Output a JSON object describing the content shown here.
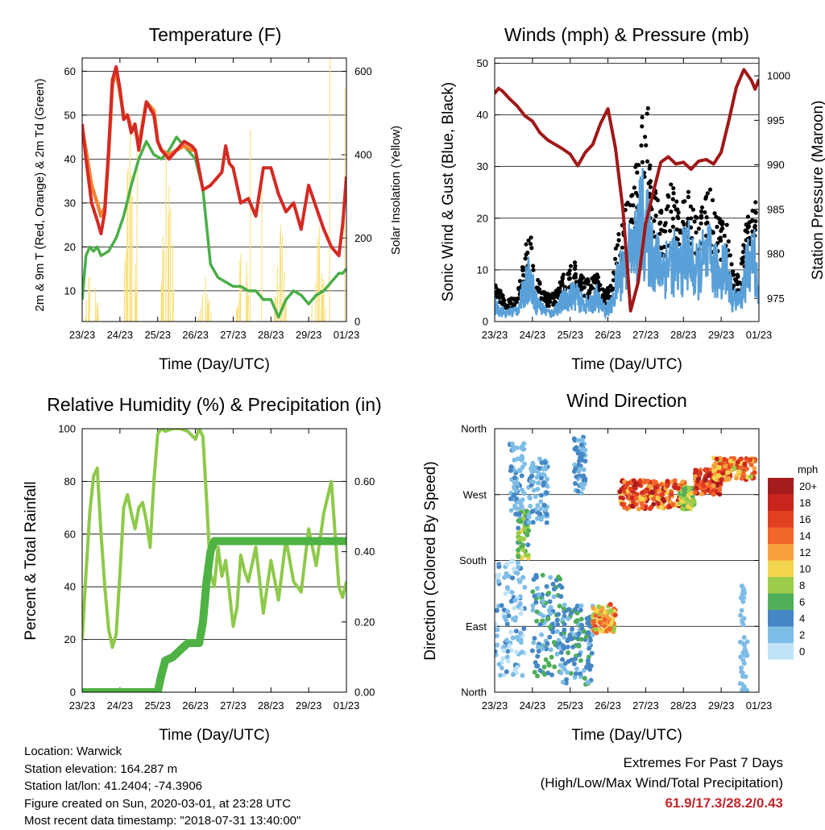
{
  "panels": {
    "temperature": {
      "title": "Temperature (F)",
      "xlabel": "Time (Day/UTC)",
      "ylabel_left": "2m & 9m T (Red, Orange) & 2m Td (Green)",
      "ylabel_right": "Solar Insolation (Yellow)"
    },
    "winds": {
      "title": "Winds (mph) & Pressure (mb)",
      "xlabel": "Time (Day/UTC)",
      "ylabel_left": "Sonic Wind & Gust (Blue, Black)",
      "ylabel_right": "Station Pressure (Maroon)"
    },
    "humidity": {
      "title": "Relative Humidity (%) & Precipitation (in)",
      "xlabel": "Time (Day/UTC)",
      "ylabel_left": "Percent & Total Rainfall"
    },
    "direction": {
      "title": "Wind Direction",
      "xlabel": "Time (Day/UTC)",
      "ylabel_left": "Direction (Colored By Speed)",
      "legend_title": "mph"
    }
  },
  "info": {
    "location": "Location: Warwick",
    "elevation": "Station elevation: 164.287 m",
    "latlon": "Station lat/lon: 41.2404; -74.3906",
    "created": "Figure created on Sun, 2020-03-01, at 23:28 UTC",
    "recent": "Most recent data timestamp: \"2018-07-31 13:40:00\""
  },
  "extremes": {
    "line1": "Extremes For Past 7 Days",
    "line2": "(High/Low/Max Wind/Total Precipitation)",
    "values": "61.9/17.3/28.2/0.43"
  },
  "colors": {
    "temp_2m": "#d42a24",
    "temp_9m": "#f58231",
    "dewpoint": "#4aae48",
    "solar": "#f8e07a",
    "wind": "#5aa0d8",
    "gust": "#000000",
    "pressure": "#a01818",
    "rh": "#8ec94a",
    "precip": "#4eb244"
  },
  "chart_data": [
    {
      "type": "line",
      "panel": "temperature",
      "x_ticks": [
        "23/23",
        "24/23",
        "25/23",
        "26/23",
        "27/23",
        "28/23",
        "29/23",
        "01/23"
      ],
      "xlim": [
        0,
        7
      ],
      "ylim": [
        3,
        63
      ],
      "y_ticks": [
        10,
        20,
        30,
        40,
        50,
        60
      ],
      "y2lim": [
        0,
        632
      ],
      "y2_ticks": [
        0,
        200,
        400,
        600
      ],
      "grid": true,
      "series": [
        {
          "key": "t2m",
          "x": [
            0,
            0.1,
            0.25,
            0.4,
            0.5,
            0.6,
            0.7,
            0.8,
            0.9,
            1.0,
            1.1,
            1.2,
            1.3,
            1.4,
            1.5,
            1.7,
            1.9,
            2.0,
            2.1,
            2.3,
            2.5,
            2.7,
            2.9,
            3.0,
            3.2,
            3.4,
            3.5,
            3.7,
            3.8,
            3.9,
            4.0,
            4.2,
            4.4,
            4.6,
            4.8,
            5.0,
            5.2,
            5.4,
            5.6,
            5.8,
            6.0,
            6.2,
            6.4,
            6.6,
            6.8,
            6.9,
            7.0
          ],
          "y": [
            48,
            40,
            30,
            26,
            23,
            28,
            42,
            58,
            61,
            56,
            49,
            50,
            46,
            48,
            42,
            53,
            50,
            44,
            42,
            40,
            42,
            44,
            43,
            42,
            33,
            34,
            35,
            37,
            43,
            39,
            38,
            30,
            31,
            27,
            38,
            38,
            32,
            28,
            30,
            24,
            34,
            29,
            24,
            20,
            18,
            25,
            36
          ]
        },
        {
          "key": "t9m",
          "x": [
            0,
            0.1,
            0.25,
            0.4,
            0.5,
            0.6,
            0.7,
            0.8,
            0.9,
            1.0,
            1.1,
            1.2,
            1.3,
            1.4,
            1.5,
            1.7,
            1.9,
            2.0,
            2.1,
            2.3,
            2.5,
            2.7,
            2.9,
            3.0
          ],
          "y": [
            47,
            42,
            34,
            30,
            27,
            29,
            41,
            57,
            60,
            55,
            50,
            50,
            47,
            47,
            43,
            53,
            51,
            44,
            42,
            41,
            42,
            43,
            42,
            42
          ]
        },
        {
          "key": "td",
          "x": [
            0,
            0.1,
            0.2,
            0.3,
            0.4,
            0.5,
            0.7,
            0.9,
            1.1,
            1.3,
            1.5,
            1.7,
            1.9,
            2.1,
            2.3,
            2.5,
            2.7,
            2.9,
            3.0,
            3.2,
            3.4,
            3.6,
            3.8,
            4.0,
            4.2,
            4.4,
            4.6,
            4.8,
            5.0,
            5.2,
            5.4,
            5.6,
            5.8,
            6.0,
            6.2,
            6.4,
            6.6,
            6.8,
            6.9,
            7.0
          ],
          "y": [
            8,
            18,
            20,
            19,
            20,
            18,
            19,
            22,
            27,
            34,
            40,
            44,
            41,
            40,
            42,
            45,
            43,
            41,
            40,
            33,
            16,
            13,
            12,
            11,
            11,
            10,
            10,
            8,
            8,
            4,
            8,
            10,
            9,
            7,
            9,
            10,
            12,
            14,
            14,
            15
          ]
        },
        {
          "key": "solar",
          "type": "spikes",
          "days": [
            0.25,
            1.25,
            2.25,
            3.25,
            4.25,
            5.25,
            6.25
          ],
          "peaks": [
            210,
            620,
            620,
            130,
            280,
            280,
            330
          ],
          "extra": [
            [
              6.55,
              640
            ],
            [
              6.95,
              560
            ],
            [
              4.45,
              460
            ],
            [
              4.75,
              320
            ],
            [
              1.45,
              420
            ]
          ]
        }
      ]
    },
    {
      "type": "line",
      "panel": "winds",
      "x_ticks": [
        "23/23",
        "24/23",
        "25/23",
        "26/23",
        "27/23",
        "28/23",
        "29/23",
        "01/23"
      ],
      "xlim": [
        0,
        7
      ],
      "ylim": [
        0,
        51
      ],
      "y_ticks": [
        0,
        10,
        20,
        30,
        40,
        50
      ],
      "y2lim": [
        972.4,
        1002
      ],
      "y2_ticks": [
        975,
        980,
        985,
        990,
        995,
        1000
      ],
      "grid": true,
      "series": [
        {
          "key": "pressure",
          "x": [
            0,
            0.1,
            0.2,
            0.4,
            0.6,
            0.8,
            1.0,
            1.2,
            1.4,
            1.6,
            1.8,
            2.0,
            2.2,
            2.4,
            2.6,
            2.8,
            3.0,
            3.2,
            3.4,
            3.6,
            3.8,
            4.0,
            4.2,
            4.4,
            4.6,
            4.8,
            5.0,
            5.2,
            5.4,
            5.6,
            5.8,
            6.0,
            6.2,
            6.4,
            6.6,
            6.8,
            6.9,
            7.0
          ],
          "y": [
            998,
            998.6,
            998.3,
            997.4,
            996.6,
            995.5,
            994.9,
            993.6,
            992.8,
            992.3,
            991.8,
            991.2,
            989.9,
            991.4,
            992.3,
            994.6,
            996.3,
            991.9,
            984.9,
            973.6,
            976.8,
            983.4,
            986.9,
            990.3,
            990.9,
            990.1,
            990.3,
            989.5,
            990.4,
            990.6,
            990.1,
            991.4,
            994.9,
            998.7,
            1000.7,
            999.5,
            998.5,
            999.6
          ]
        },
        {
          "key": "wind",
          "x": [
            0,
            0.3,
            0.6,
            0.8,
            0.9,
            1.1,
            1.3,
            1.5,
            1.7,
            1.9,
            2.1,
            2.3,
            2.5,
            2.7,
            2.9,
            3.1,
            3.3,
            3.5,
            3.7,
            3.9,
            4.1,
            4.3,
            4.5,
            4.7,
            4.9,
            5.1,
            5.3,
            5.5,
            5.7,
            5.9,
            6.1,
            6.3,
            6.5,
            6.7,
            6.9,
            7.0
          ],
          "y": [
            4,
            2,
            3,
            8,
            12,
            5,
            3,
            2,
            4,
            6,
            7,
            5,
            4,
            6,
            3,
            4,
            12,
            16,
            18,
            26,
            20,
            15,
            14,
            16,
            13,
            18,
            12,
            15,
            16,
            12,
            15,
            6,
            5,
            14,
            16,
            5
          ]
        },
        {
          "key": "gust",
          "x": [
            0,
            0.3,
            0.6,
            0.8,
            0.9,
            1.1,
            1.3,
            1.5,
            1.7,
            1.9,
            2.1,
            2.3,
            2.5,
            2.7,
            2.9,
            3.1,
            3.3,
            3.5,
            3.7,
            3.9,
            4.05,
            4.1,
            4.3,
            4.5,
            4.7,
            4.9,
            5.1,
            5.3,
            5.5,
            5.7,
            5.9,
            6.1,
            6.3,
            6.5,
            6.7,
            6.9,
            7.0
          ],
          "y": [
            8,
            4,
            5,
            14,
            20,
            9,
            6,
            5,
            8,
            10,
            12,
            9,
            8,
            10,
            6,
            8,
            20,
            24,
            30,
            40,
            48,
            32,
            24,
            22,
            28,
            20,
            28,
            20,
            24,
            26,
            20,
            22,
            10,
            9,
            22,
            26,
            9
          ]
        }
      ]
    },
    {
      "type": "line",
      "panel": "humidity",
      "x_ticks": [
        "23/23",
        "24/23",
        "25/23",
        "26/23",
        "27/23",
        "28/23",
        "29/23",
        "01/23"
      ],
      "xlim": [
        0,
        7
      ],
      "ylim": [
        0,
        100
      ],
      "y_ticks": [
        0,
        20,
        40,
        60,
        80,
        100
      ],
      "y2lim": [
        0,
        0.75
      ],
      "y2_ticks": [
        "0.00",
        "0.20",
        "0.40",
        "0.60"
      ],
      "grid": true,
      "series": [
        {
          "key": "rh",
          "x": [
            0,
            0.1,
            0.2,
            0.3,
            0.4,
            0.5,
            0.6,
            0.7,
            0.8,
            0.9,
            1.0,
            1.1,
            1.2,
            1.3,
            1.4,
            1.5,
            1.6,
            1.7,
            1.8,
            1.9,
            2.0,
            2.1,
            2.2,
            2.4,
            2.6,
            2.8,
            3.0,
            3.1,
            3.2,
            3.3,
            3.4,
            3.5,
            3.6,
            3.7,
            3.8,
            3.9,
            4.0,
            4.1,
            4.2,
            4.3,
            4.4,
            4.6,
            4.8,
            5.0,
            5.2,
            5.4,
            5.6,
            5.8,
            6.0,
            6.2,
            6.4,
            6.6,
            6.8,
            6.9,
            7.0
          ],
          "y": [
            20,
            45,
            68,
            82,
            85,
            60,
            40,
            24,
            17,
            22,
            45,
            70,
            75,
            68,
            62,
            70,
            72,
            65,
            55,
            80,
            98,
            100,
            99,
            100,
            100,
            99,
            96,
            100,
            97,
            72,
            45,
            40,
            55,
            44,
            50,
            38,
            25,
            32,
            52,
            46,
            42,
            55,
            30,
            50,
            35,
            58,
            42,
            38,
            62,
            48,
            68,
            80,
            40,
            36,
            42
          ]
        },
        {
          "key": "precip",
          "x": [
            0,
            1.0,
            2.0,
            2.1,
            2.2,
            2.4,
            2.6,
            2.8,
            3.0,
            3.1,
            3.2,
            3.3,
            3.4,
            3.5,
            3.6,
            4.0,
            5.0,
            6.0,
            7.0
          ],
          "y": [
            0,
            0,
            0,
            0.05,
            0.09,
            0.1,
            0.12,
            0.14,
            0.14,
            0.14,
            0.2,
            0.32,
            0.4,
            0.43,
            0.43,
            0.43,
            0.43,
            0.43,
            0.43
          ]
        }
      ]
    },
    {
      "type": "scatter",
      "panel": "direction",
      "x_ticks": [
        "23/23",
        "24/23",
        "25/23",
        "26/23",
        "27/23",
        "28/23",
        "29/23",
        "01/23"
      ],
      "xlim": [
        0,
        7
      ],
      "y_categories": [
        "North",
        "East",
        "South",
        "West",
        "North"
      ],
      "ylim": [
        0,
        360
      ],
      "legend": {
        "title": "mph",
        "labels": [
          "20+",
          "18",
          "16",
          "14",
          "12",
          "10",
          "8",
          "6",
          "4",
          "2",
          "0"
        ],
        "colors": [
          "#a51c1e",
          "#c9251e",
          "#e23e22",
          "#f2652b",
          "#f6a03e",
          "#f4d54e",
          "#9ccc49",
          "#4fae5a",
          "#4586c4",
          "#7ebde6",
          "#bfe3f7"
        ]
      },
      "clusters": [
        {
          "x": [
            0,
            0.8
          ],
          "y": [
            20,
            180
          ],
          "speed": [
            0,
            4
          ]
        },
        {
          "x": [
            0.4,
            0.8
          ],
          "y": [
            240,
            340
          ],
          "speed": [
            1,
            4
          ]
        },
        {
          "x": [
            0.6,
            0.9
          ],
          "y": [
            180,
            250
          ],
          "speed": [
            4,
            10
          ]
        },
        {
          "x": [
            0.9,
            1.4
          ],
          "y": [
            230,
            320
          ],
          "speed": [
            1,
            4
          ]
        },
        {
          "x": [
            1.0,
            1.8
          ],
          "y": [
            20,
            160
          ],
          "speed": [
            2,
            6
          ]
        },
        {
          "x": [
            1.8,
            2.6
          ],
          "y": [
            10,
            120
          ],
          "speed": [
            2,
            6
          ]
        },
        {
          "x": [
            2.1,
            2.4
          ],
          "y": [
            270,
            350
          ],
          "speed": [
            2,
            4
          ]
        },
        {
          "x": [
            2.6,
            3.2
          ],
          "y": [
            80,
            120
          ],
          "speed": [
            8,
            16
          ]
        },
        {
          "x": [
            3.3,
            5.1
          ],
          "y": [
            250,
            290
          ],
          "speed": [
            10,
            20
          ]
        },
        {
          "x": [
            4.9,
            5.3
          ],
          "y": [
            250,
            280
          ],
          "speed": [
            6,
            10
          ]
        },
        {
          "x": [
            5.3,
            6.0
          ],
          "y": [
            270,
            305
          ],
          "speed": [
            12,
            20
          ]
        },
        {
          "x": [
            5.8,
            6.9
          ],
          "y": [
            290,
            320
          ],
          "speed": [
            8,
            18
          ]
        },
        {
          "x": [
            6.5,
            6.7
          ],
          "y": [
            0,
            150
          ],
          "speed": [
            1,
            3
          ]
        }
      ]
    }
  ]
}
